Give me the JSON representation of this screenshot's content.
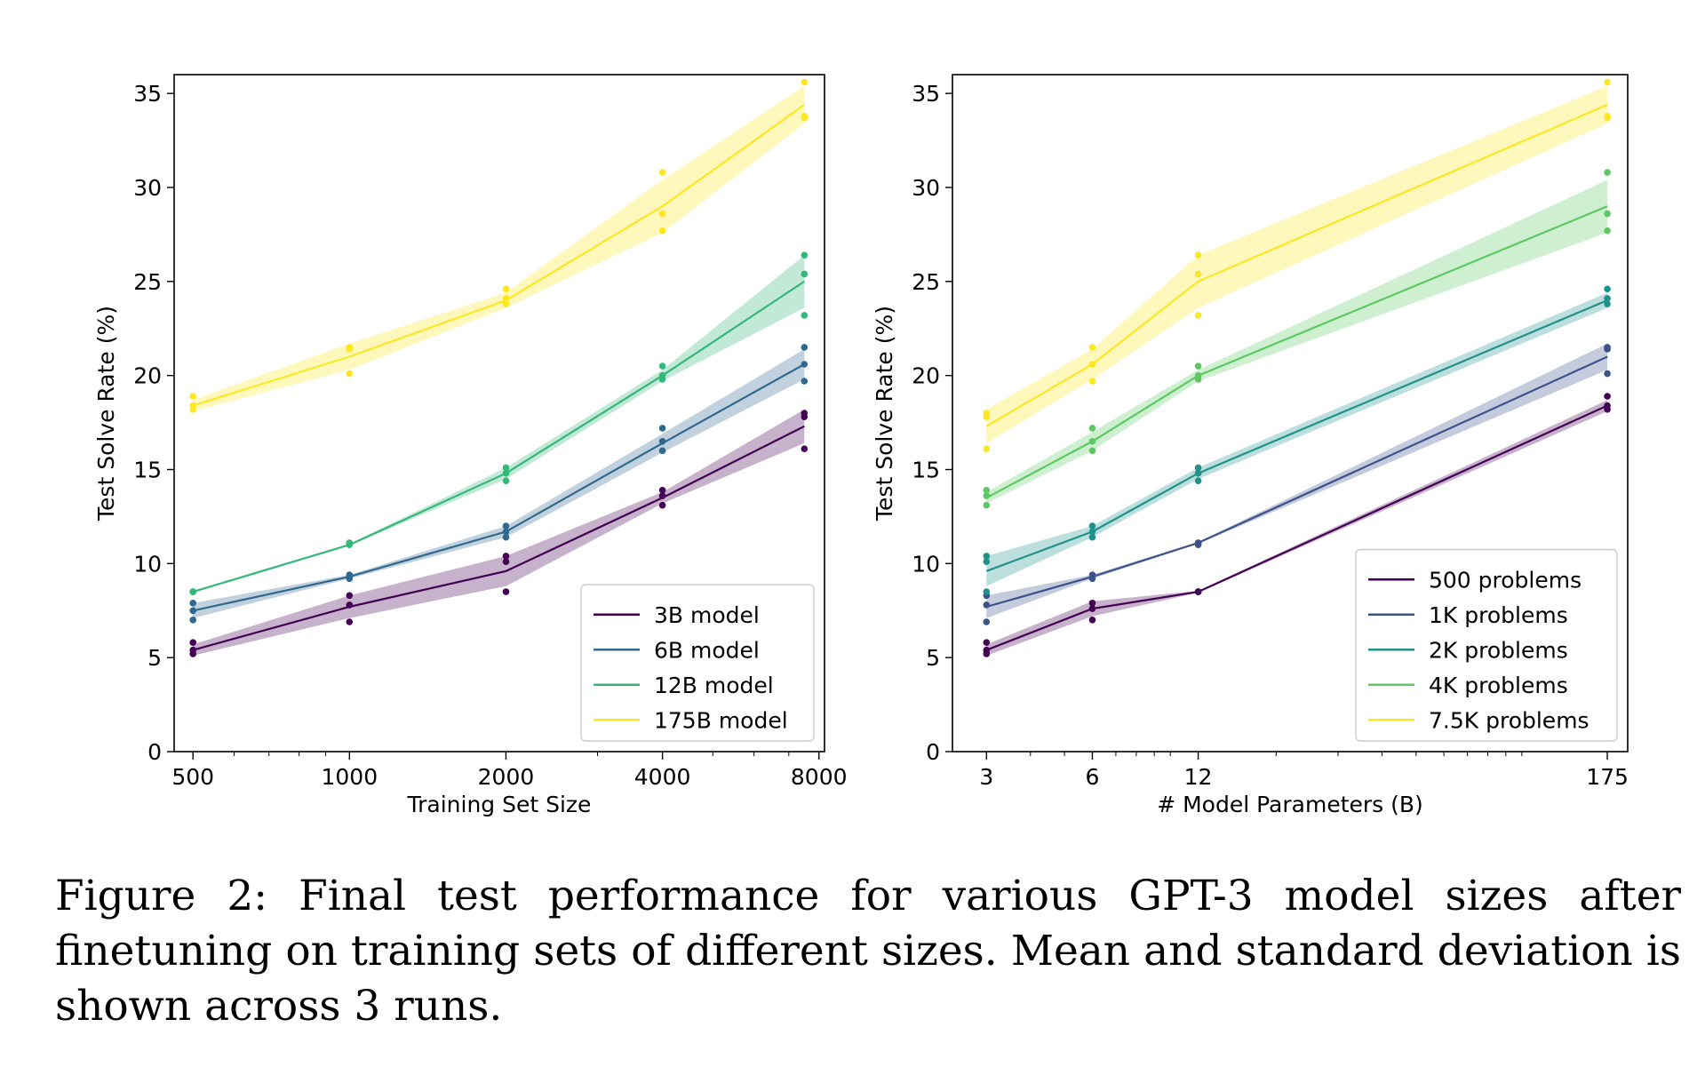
{
  "caption": "Figure 2: Final test performance for various GPT-3 model sizes after finetuning on training sets of different sizes. Mean and standard deviation is shown across 3 runs.",
  "chart_data": [
    {
      "type": "line",
      "xlabel": "Training Set Size",
      "ylabel": "Test Solve Rate (%)",
      "xscale": "log",
      "x": [
        500,
        1000,
        2000,
        4000,
        7500
      ],
      "xticks": [
        500,
        1000,
        2000,
        4000,
        8000
      ],
      "xtick_labels": [
        "500",
        "1000",
        "2000",
        "4000",
        "8000"
      ],
      "xlim": [
        460,
        8200
      ],
      "ylim": [
        0,
        36
      ],
      "yticks": [
        0,
        5,
        10,
        15,
        20,
        25,
        30,
        35
      ],
      "ytick_labels": [
        "0",
        "5",
        "10",
        "15",
        "20",
        "25",
        "30",
        "35"
      ],
      "legend_loc": "lower right",
      "series": [
        {
          "name": "3B model",
          "color": "#440154",
          "mean": [
            5.4,
            7.7,
            9.6,
            13.5,
            17.3
          ],
          "sd": [
            0.3,
            0.6,
            0.8,
            0.3,
            0.9
          ],
          "runs": [
            [
              5.2,
              5.4,
              5.8
            ],
            [
              6.9,
              7.8,
              8.3
            ],
            [
              8.5,
              10.1,
              10.4
            ],
            [
              13.1,
              13.6,
              13.9
            ],
            [
              16.1,
              17.8,
              18.0
            ]
          ]
        },
        {
          "name": "6B model",
          "color": "#31688e",
          "mean": [
            7.5,
            9.3,
            11.7,
            16.4,
            20.6
          ],
          "sd": [
            0.4,
            0.1,
            0.3,
            0.5,
            0.8
          ],
          "runs": [
            [
              7.0,
              7.5,
              7.9
            ],
            [
              9.2,
              9.3,
              9.4
            ],
            [
              11.4,
              11.7,
              12.0
            ],
            [
              16.0,
              16.5,
              17.2
            ],
            [
              19.7,
              20.6,
              21.5
            ]
          ]
        },
        {
          "name": "12B model",
          "color": "#35b779",
          "mean": [
            8.5,
            11.0,
            14.8,
            20.0,
            25.0
          ],
          "sd": [
            0.05,
            0.05,
            0.3,
            0.3,
            1.4
          ],
          "runs": [
            [
              8.5,
              8.5,
              8.5
            ],
            [
              11.0,
              11.1,
              11.1
            ],
            [
              14.4,
              14.8,
              15.1
            ],
            [
              19.8,
              20.0,
              20.5
            ],
            [
              23.2,
              25.4,
              26.4
            ]
          ]
        },
        {
          "name": "175B model",
          "color": "#fde725",
          "mean": [
            18.4,
            21.0,
            24.0,
            29.0,
            34.4
          ],
          "sd": [
            0.3,
            0.7,
            0.4,
            1.4,
            1.0
          ],
          "runs": [
            [
              18.2,
              18.4,
              18.9
            ],
            [
              20.1,
              21.4,
              21.5
            ],
            [
              23.8,
              24.1,
              24.6
            ],
            [
              27.7,
              28.6,
              30.8
            ],
            [
              33.7,
              33.8,
              35.6
            ]
          ]
        }
      ]
    },
    {
      "type": "line",
      "xlabel": "# Model Parameters (B)",
      "ylabel": "Test Solve Rate (%)",
      "xscale": "log",
      "x": [
        3,
        6,
        12,
        175
      ],
      "xticks": [
        3,
        6,
        12,
        175
      ],
      "xtick_labels": [
        "3",
        "6",
        "12",
        "175"
      ],
      "xlim": [
        2.4,
        200
      ],
      "ylim": [
        0,
        36
      ],
      "yticks": [
        0,
        5,
        10,
        15,
        20,
        25,
        30,
        35
      ],
      "ytick_labels": [
        "0",
        "5",
        "10",
        "15",
        "20",
        "25",
        "30",
        "35"
      ],
      "legend_loc": "lower right",
      "series": [
        {
          "name": "500 problems",
          "color": "#440154",
          "mean": [
            5.4,
            7.6,
            8.5,
            18.4
          ],
          "sd": [
            0.3,
            0.4,
            0.05,
            0.3
          ],
          "runs": [
            [
              5.2,
              5.4,
              5.8
            ],
            [
              7.0,
              7.6,
              7.9
            ],
            [
              8.5,
              8.5,
              8.5
            ],
            [
              18.2,
              18.4,
              18.9
            ]
          ]
        },
        {
          "name": "1K problems",
          "color": "#3b528b",
          "mean": [
            7.7,
            9.3,
            11.1,
            21.0
          ],
          "sd": [
            0.6,
            0.1,
            0.05,
            0.7
          ],
          "runs": [
            [
              6.9,
              7.8,
              8.3
            ],
            [
              9.2,
              9.3,
              9.4
            ],
            [
              11.0,
              11.1,
              11.1
            ],
            [
              20.1,
              21.4,
              21.5
            ]
          ]
        },
        {
          "name": "2K problems",
          "color": "#21918c",
          "mean": [
            9.6,
            11.7,
            14.8,
            24.0
          ],
          "sd": [
            0.8,
            0.3,
            0.3,
            0.4
          ],
          "runs": [
            [
              8.5,
              10.1,
              10.4
            ],
            [
              11.4,
              11.7,
              12.0
            ],
            [
              14.4,
              14.8,
              15.1
            ],
            [
              23.8,
              24.1,
              24.6
            ]
          ]
        },
        {
          "name": "4K problems",
          "color": "#5ec962",
          "mean": [
            13.5,
            16.5,
            20.0,
            29.0
          ],
          "sd": [
            0.3,
            0.5,
            0.3,
            1.4
          ],
          "runs": [
            [
              13.1,
              13.6,
              13.9
            ],
            [
              16.0,
              16.5,
              17.2
            ],
            [
              19.8,
              20.0,
              20.5
            ],
            [
              27.7,
              28.6,
              30.8
            ]
          ]
        },
        {
          "name": "7.5K problems",
          "color": "#fde725",
          "mean": [
            17.3,
            20.6,
            25.0,
            34.4
          ],
          "sd": [
            0.9,
            0.8,
            1.4,
            1.0
          ],
          "runs": [
            [
              16.1,
              17.8,
              18.0
            ],
            [
              19.7,
              20.6,
              21.5
            ],
            [
              23.2,
              25.4,
              26.4
            ],
            [
              33.7,
              33.8,
              35.6
            ]
          ]
        }
      ]
    }
  ]
}
